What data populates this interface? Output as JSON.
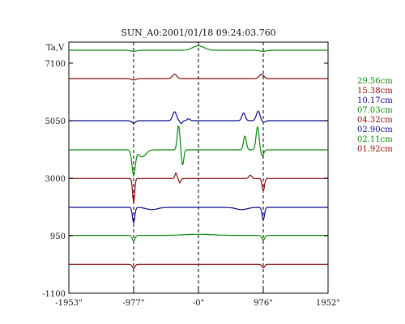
{
  "chart_data": {
    "type": "line",
    "title": "SUN_A0:2001/01/18 09:24:03.760",
    "ylabel": "Ta,V",
    "xlabel": "",
    "ylim": [
      -1100,
      7850
    ],
    "xlim": [
      -1953,
      1952
    ],
    "x_ticks": [
      {
        "value": -1953,
        "label": "-1953\""
      },
      {
        "value": -977,
        "label": "-977\""
      },
      {
        "value": 0,
        "label": "-0\""
      },
      {
        "value": 976,
        "label": "976\""
      },
      {
        "value": 1952,
        "label": "1952\""
      }
    ],
    "y_ticks": [
      {
        "value": 7100,
        "label": "7100"
      },
      {
        "value": 5050,
        "label": "5050"
      },
      {
        "value": 3000,
        "label": "3000"
      },
      {
        "value": 950,
        "label": "950"
      },
      {
        "value": -1100,
        "label": "-1100"
      }
    ],
    "dashed_vlines": [
      -977,
      0,
      976
    ],
    "legend_position": "right",
    "series": [
      {
        "name": "29.56cm",
        "color": "#0a8a0a",
        "baseline": 7560,
        "features": [
          {
            "x": 0,
            "amp": 160,
            "w": 120
          },
          {
            "x": -977,
            "amp": -40,
            "w": 60
          },
          {
            "x": 976,
            "amp": -40,
            "w": 60
          }
        ]
      },
      {
        "name": "15.38cm",
        "color": "#8b0a0a",
        "baseline": 6550,
        "features": [
          {
            "x": -360,
            "amp": 160,
            "w": 45
          },
          {
            "x": 950,
            "amp": 160,
            "w": 45
          },
          {
            "x": -977,
            "amp": -50,
            "w": 50
          }
        ]
      },
      {
        "name": "10.17cm",
        "color": "#0a0a8b",
        "baseline": 5050,
        "features": [
          {
            "x": -360,
            "amp": 320,
            "w": 40
          },
          {
            "x": -260,
            "amp": -100,
            "w": 25
          },
          {
            "x": -150,
            "amp": 70,
            "w": 30
          },
          {
            "x": 680,
            "amp": 280,
            "w": 35
          },
          {
            "x": 900,
            "amp": 340,
            "w": 40
          },
          {
            "x": -977,
            "amp": -90,
            "w": 40
          },
          {
            "x": 976,
            "amp": -60,
            "w": 40
          }
        ]
      },
      {
        "name": "07.03cm",
        "color": "#0a8a0a",
        "baseline": 4010,
        "features": [
          {
            "x": -300,
            "amp": 880,
            "w": 28
          },
          {
            "x": -240,
            "amp": -560,
            "w": 25
          },
          {
            "x": -977,
            "amp": -900,
            "w": 35
          },
          {
            "x": -850,
            "amp": -250,
            "w": 80
          },
          {
            "x": 700,
            "amp": 500,
            "w": 30
          },
          {
            "x": 890,
            "amp": 830,
            "w": 32
          },
          {
            "x": 960,
            "amp": -220,
            "w": 30
          }
        ]
      },
      {
        "name": "04.32cm",
        "color": "#8b0a0a",
        "baseline": 2990,
        "features": [
          {
            "x": -977,
            "amp": -880,
            "w": 22
          },
          {
            "x": -340,
            "amp": 200,
            "w": 20
          },
          {
            "x": -280,
            "amp": -160,
            "w": 20
          },
          {
            "x": 976,
            "amp": -450,
            "w": 25
          },
          {
            "x": 780,
            "amp": 120,
            "w": 30
          }
        ]
      },
      {
        "name": "02.90cm",
        "color": "#0a0a8b",
        "baseline": 1960,
        "features": [
          {
            "x": -977,
            "amp": -560,
            "w": 25
          },
          {
            "x": 976,
            "amp": -460,
            "w": 25
          },
          {
            "x": -700,
            "amp": -80,
            "w": 120
          },
          {
            "x": 650,
            "amp": -80,
            "w": 120
          }
        ]
      },
      {
        "name": "02.11cm",
        "color": "#0a8a0a",
        "baseline": 960,
        "features": [
          {
            "x": -977,
            "amp": -200,
            "w": 28
          },
          {
            "x": 976,
            "amp": -180,
            "w": 28
          },
          {
            "x": 0,
            "amp": 40,
            "w": 300
          }
        ]
      },
      {
        "name": "01.92cm",
        "color": "#8b0a0a",
        "baseline": -70,
        "features": [
          {
            "x": -977,
            "amp": -150,
            "w": 28
          },
          {
            "x": 976,
            "amp": -130,
            "w": 28
          }
        ]
      }
    ]
  }
}
